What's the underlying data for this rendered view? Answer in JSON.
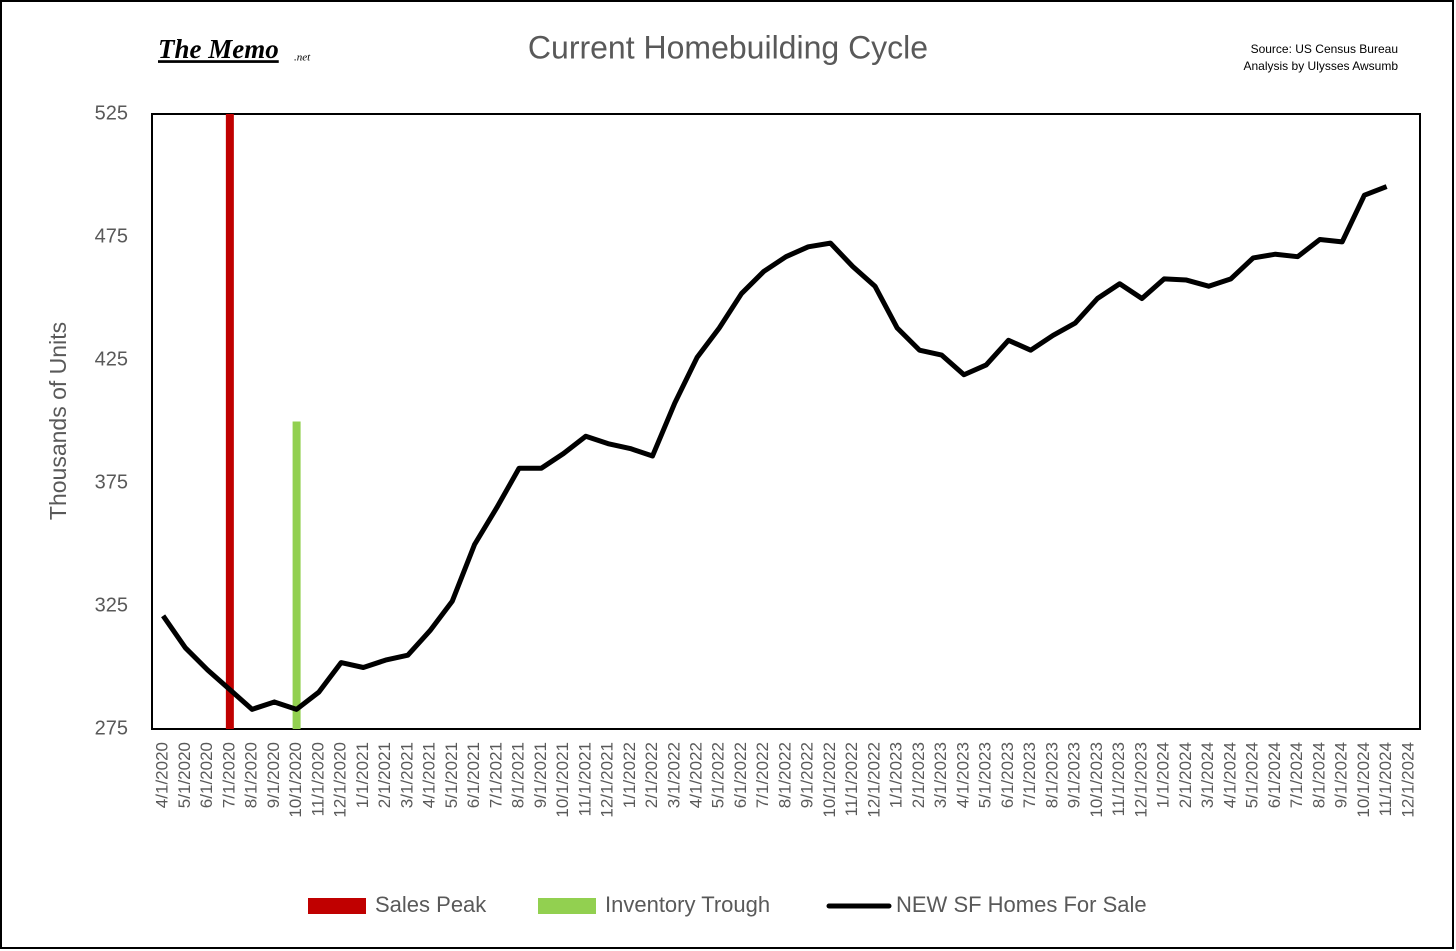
{
  "branding": {
    "name": "The Memo",
    "suffix": ".net"
  },
  "source": [
    "Source: US Census Bureau",
    "Analysis by Ulysses Awsumb"
  ],
  "chart_data": {
    "type": "line",
    "title": "Current Homebuilding Cycle",
    "y_label": "Thousands of Units",
    "categories": [
      "4/1/2020",
      "5/1/2020",
      "6/1/2020",
      "7/1/2020",
      "8/1/2020",
      "9/1/2020",
      "10/1/2020",
      "11/1/2020",
      "12/1/2020",
      "1/1/2021",
      "2/1/2021",
      "3/1/2021",
      "4/1/2021",
      "5/1/2021",
      "6/1/2021",
      "7/1/2021",
      "8/1/2021",
      "9/1/2021",
      "10/1/2021",
      "11/1/2021",
      "12/1/2021",
      "1/1/2022",
      "2/1/2022",
      "3/1/2022",
      "4/1/2022",
      "5/1/2022",
      "6/1/2022",
      "7/1/2022",
      "8/1/2022",
      "9/1/2022",
      "10/1/2022",
      "11/1/2022",
      "12/1/2022",
      "1/1/2023",
      "2/1/2023",
      "3/1/2023",
      "4/1/2023",
      "5/1/2023",
      "6/1/2023",
      "7/1/2023",
      "8/1/2023",
      "9/1/2023",
      "10/1/2023",
      "11/1/2023",
      "12/1/2023",
      "1/1/2024",
      "2/1/2024",
      "3/1/2024",
      "4/1/2024",
      "5/1/2024",
      "6/1/2024",
      "7/1/2024",
      "8/1/2024",
      "9/1/2024",
      "10/1/2024",
      "11/1/2024",
      "12/1/2024"
    ],
    "series": [
      {
        "name": "Sales Peak",
        "type": "bar",
        "color": "#c00000",
        "values": [
          null,
          null,
          null,
          525,
          null,
          null,
          null,
          null,
          null,
          null,
          null,
          null,
          null,
          null,
          null,
          null,
          null,
          null,
          null,
          null,
          null,
          null,
          null,
          null,
          null,
          null,
          null,
          null,
          null,
          null,
          null,
          null,
          null,
          null,
          null,
          null,
          null,
          null,
          null,
          null,
          null,
          null,
          null,
          null,
          null,
          null,
          null,
          null,
          null,
          null,
          null,
          null,
          null,
          null,
          null,
          null,
          null
        ]
      },
      {
        "name": "Inventory Trough",
        "type": "bar",
        "color": "#92d050",
        "values": [
          null,
          null,
          null,
          null,
          null,
          null,
          400,
          null,
          null,
          null,
          null,
          null,
          null,
          null,
          null,
          null,
          null,
          null,
          null,
          null,
          null,
          null,
          null,
          null,
          null,
          null,
          null,
          null,
          null,
          null,
          null,
          null,
          null,
          null,
          null,
          null,
          null,
          null,
          null,
          null,
          null,
          null,
          null,
          null,
          null,
          null,
          null,
          null,
          null,
          null,
          null,
          null,
          null,
          null,
          null,
          null,
          null
        ]
      },
      {
        "name": "NEW SF Homes For Sale",
        "type": "line",
        "color": "#000000",
        "values": [
          321,
          308,
          299,
          291,
          283,
          286,
          283,
          290,
          302,
          300,
          303,
          305,
          315,
          327,
          350,
          365,
          381,
          381,
          387,
          394,
          391,
          389,
          386,
          407.5,
          426,
          438,
          452,
          461,
          467,
          471,
          472.5,
          463,
          455,
          438,
          429,
          427,
          419,
          423,
          433,
          429,
          435,
          440,
          450,
          456,
          450,
          458,
          457.5,
          455,
          458,
          466.5,
          468,
          467,
          474,
          473,
          492,
          495.5,
          null
        ]
      }
    ],
    "ylim": [
      275,
      525
    ],
    "yticks": [
      275,
      325,
      375,
      425,
      475,
      525
    ],
    "grid": false
  }
}
